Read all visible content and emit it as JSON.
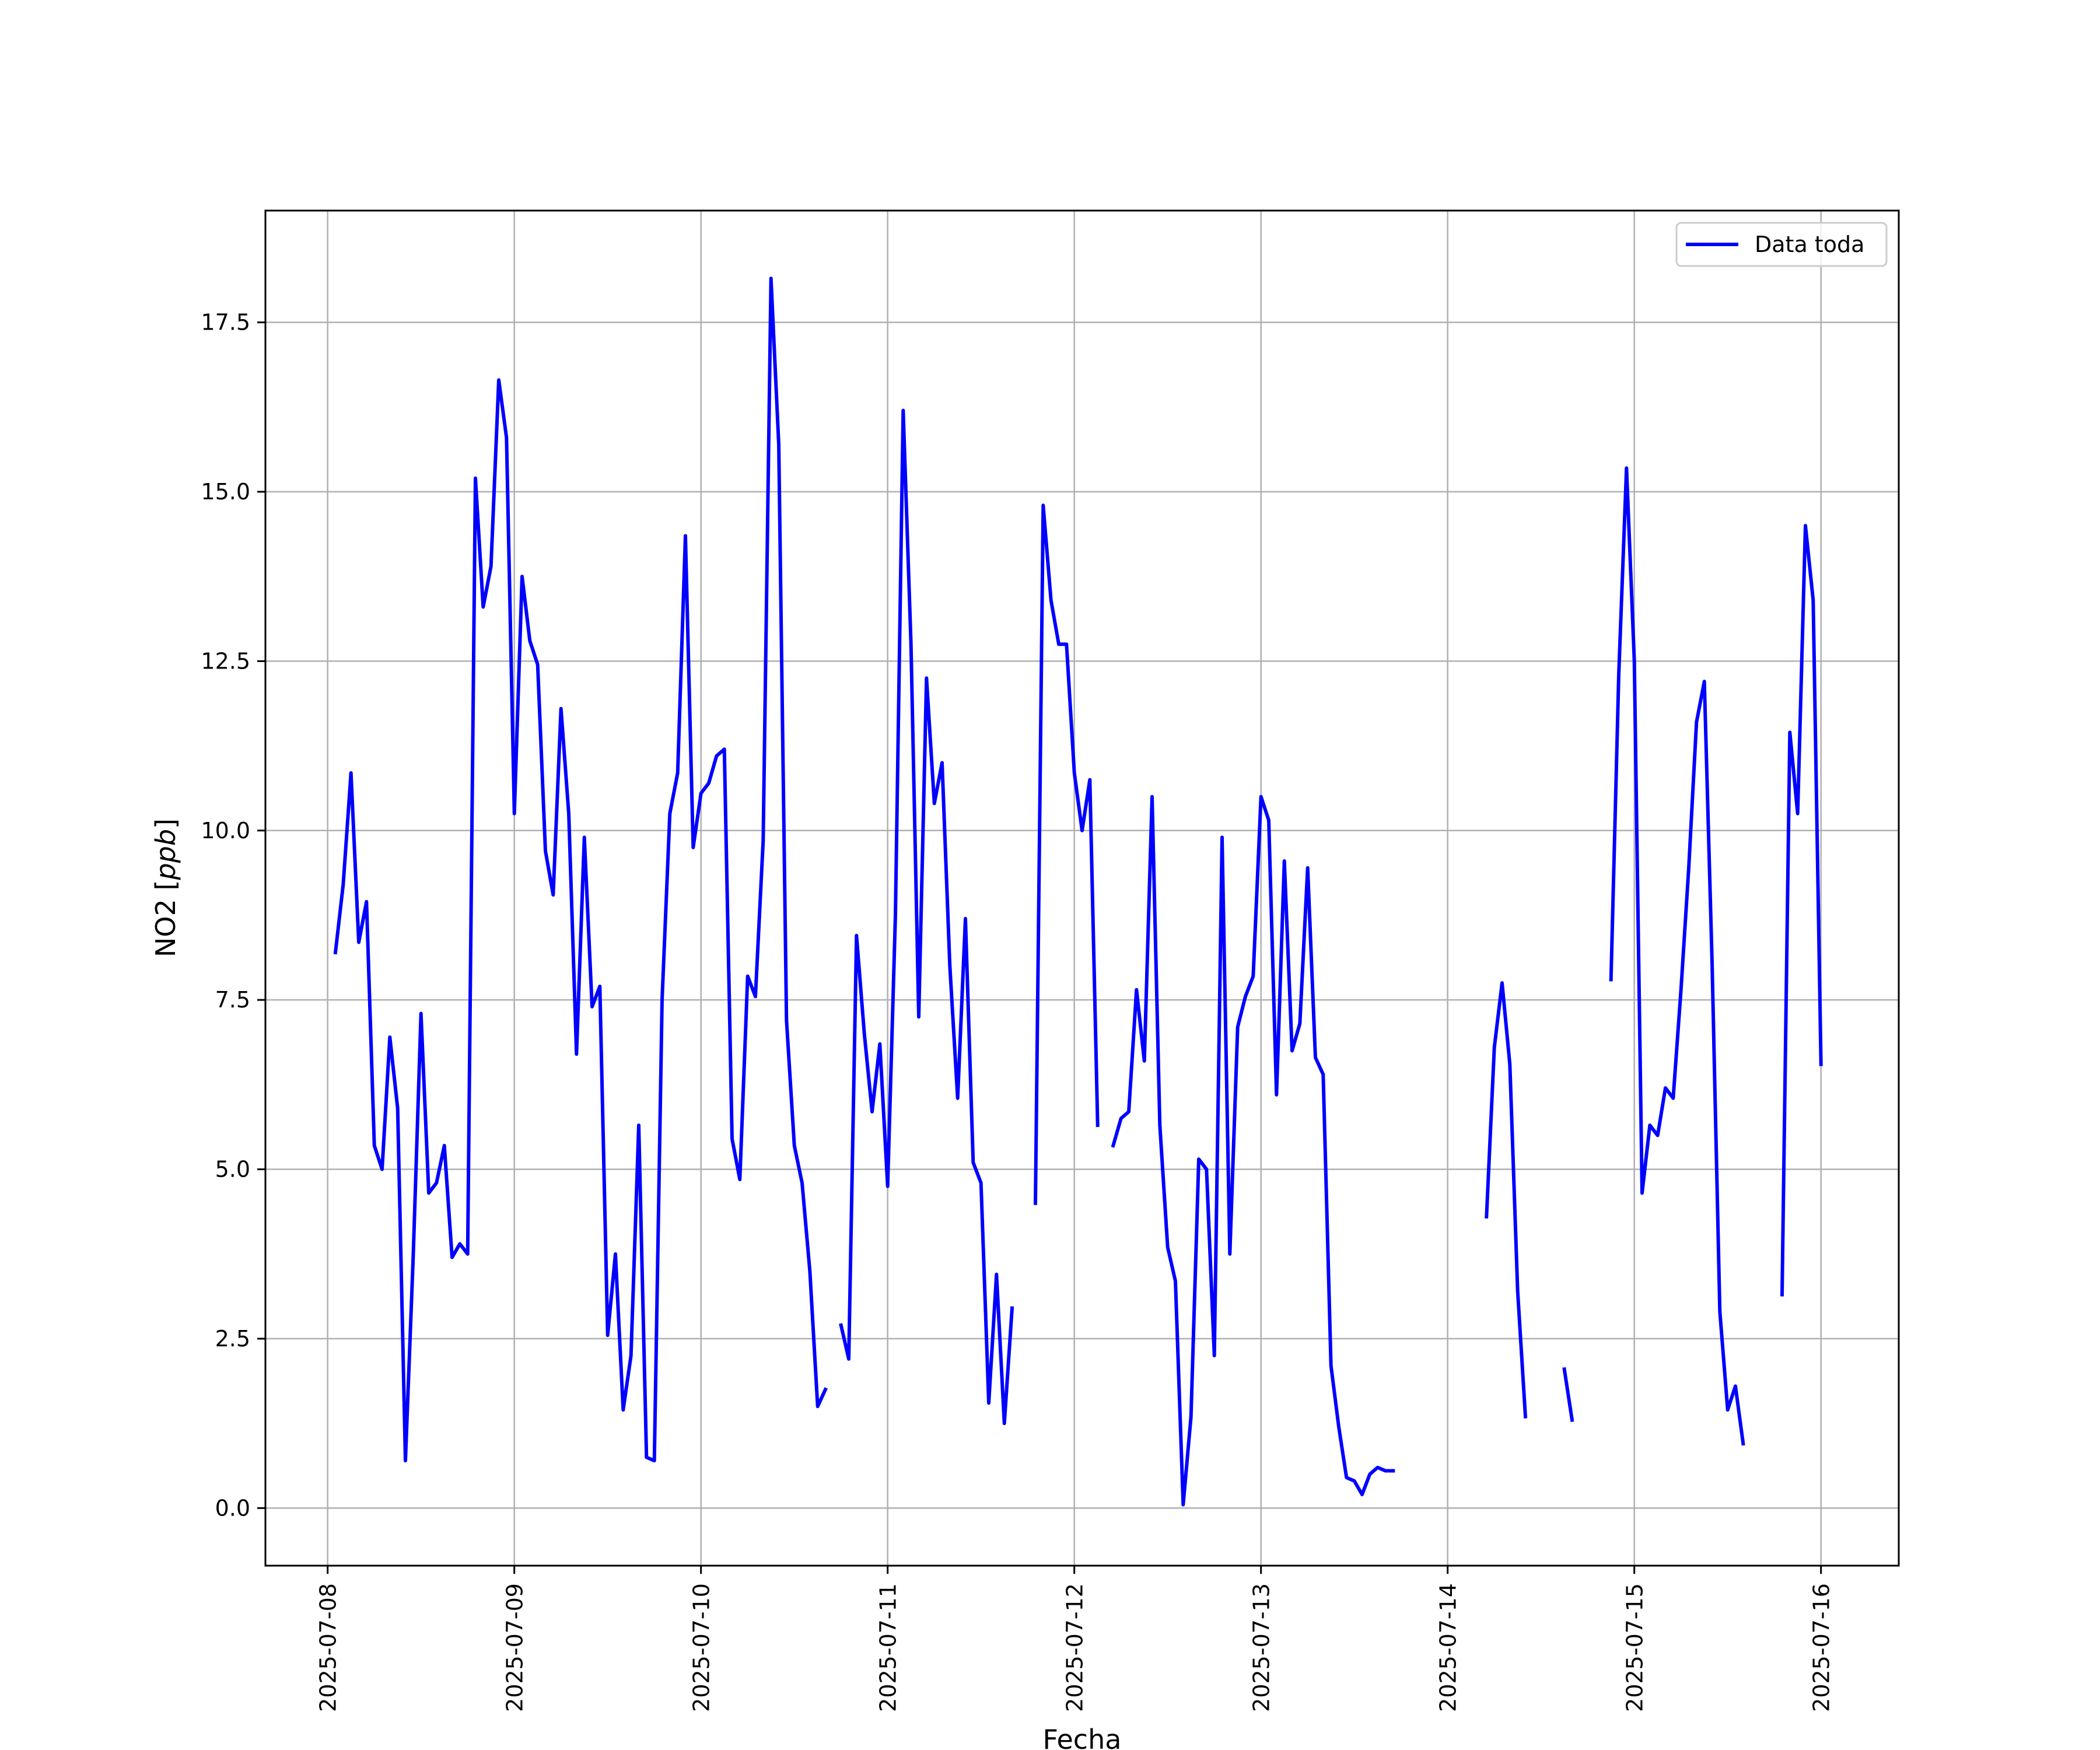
{
  "chart_data": {
    "type": "line",
    "title": "",
    "xlabel": "Fecha",
    "ylabel": "NO2",
    "ylabel_unit": "ppb",
    "xlim": [
      "2025-07-07T16:00",
      "2025-07-16T10:00"
    ],
    "ylim": [
      -0.85,
      19.15
    ],
    "yticks": [
      0.0,
      2.5,
      5.0,
      7.5,
      10.0,
      12.5,
      15.0,
      17.5
    ],
    "ytick_labels": [
      "0.0",
      "2.5",
      "5.0",
      "7.5",
      "10.0",
      "12.5",
      "15.0",
      "17.5"
    ],
    "xticks": [
      "2025-07-08",
      "2025-07-09",
      "2025-07-10",
      "2025-07-11",
      "2025-07-12",
      "2025-07-13",
      "2025-07-14",
      "2025-07-15",
      "2025-07-16"
    ],
    "grid": true,
    "legend": {
      "placement": "top-right",
      "entries": [
        "Data toda"
      ]
    },
    "series": [
      {
        "name": "Data toda",
        "color": "#0000ff",
        "points": [
          [
            "2025-07-08T01:00",
            8.2
          ],
          [
            "2025-07-08T02:00",
            9.2
          ],
          [
            "2025-07-08T03:00",
            10.85
          ],
          [
            "2025-07-08T04:00",
            8.35
          ],
          [
            "2025-07-08T05:00",
            8.95
          ],
          [
            "2025-07-08T06:00",
            5.35
          ],
          [
            "2025-07-08T07:00",
            5.0
          ],
          [
            "2025-07-08T08:00",
            6.95
          ],
          [
            "2025-07-08T09:00",
            5.9
          ],
          [
            "2025-07-08T10:00",
            0.7
          ],
          [
            "2025-07-08T11:00",
            3.7
          ],
          [
            "2025-07-08T12:00",
            7.3
          ],
          [
            "2025-07-08T13:00",
            4.65
          ],
          [
            "2025-07-08T14:00",
            4.8
          ],
          [
            "2025-07-08T15:00",
            5.35
          ],
          [
            "2025-07-08T16:00",
            3.7
          ],
          [
            "2025-07-08T17:00",
            3.9
          ],
          [
            "2025-07-08T18:00",
            3.75
          ],
          [
            "2025-07-08T19:00",
            15.2
          ],
          [
            "2025-07-08T20:00",
            13.3
          ],
          [
            "2025-07-08T21:00",
            13.9
          ],
          [
            "2025-07-08T22:00",
            16.65
          ],
          [
            "2025-07-08T23:00",
            15.8
          ],
          [
            "2025-07-09T00:00",
            10.25
          ],
          [
            "2025-07-09T01:00",
            13.75
          ],
          [
            "2025-07-09T02:00",
            12.8
          ],
          [
            "2025-07-09T03:00",
            12.45
          ],
          [
            "2025-07-09T04:00",
            9.7
          ],
          [
            "2025-07-09T05:00",
            9.05
          ],
          [
            "2025-07-09T06:00",
            11.8
          ],
          [
            "2025-07-09T07:00",
            10.25
          ],
          [
            "2025-07-09T08:00",
            6.7
          ],
          [
            "2025-07-09T09:00",
            9.9
          ],
          [
            "2025-07-09T10:00",
            7.4
          ],
          [
            "2025-07-09T11:00",
            7.7
          ],
          [
            "2025-07-09T12:00",
            2.55
          ],
          [
            "2025-07-09T13:00",
            3.75
          ],
          [
            "2025-07-09T14:00",
            1.45
          ],
          [
            "2025-07-09T15:00",
            2.25
          ],
          [
            "2025-07-09T16:00",
            5.65
          ],
          [
            "2025-07-09T17:00",
            0.75
          ],
          [
            "2025-07-09T18:00",
            0.7
          ],
          [
            "2025-07-09T19:00",
            7.5
          ],
          [
            "2025-07-09T20:00",
            10.25
          ],
          [
            "2025-07-09T21:00",
            10.85
          ],
          [
            "2025-07-09T22:00",
            14.35
          ],
          [
            "2025-07-09T23:00",
            9.75
          ],
          [
            "2025-07-10T00:00",
            10.55
          ],
          [
            "2025-07-10T01:00",
            10.7
          ],
          [
            "2025-07-10T02:00",
            11.1
          ],
          [
            "2025-07-10T03:00",
            11.2
          ],
          [
            "2025-07-10T04:00",
            5.45
          ],
          [
            "2025-07-10T05:00",
            4.85
          ],
          [
            "2025-07-10T06:00",
            7.85
          ],
          [
            "2025-07-10T07:00",
            7.55
          ],
          [
            "2025-07-10T08:00",
            9.85
          ],
          [
            "2025-07-10T09:00",
            18.15
          ],
          [
            "2025-07-10T10:00",
            15.7
          ],
          [
            "2025-07-10T11:00",
            7.2
          ],
          [
            "2025-07-10T12:00",
            5.35
          ],
          [
            "2025-07-10T13:00",
            4.8
          ],
          [
            "2025-07-10T14:00",
            3.5
          ],
          [
            "2025-07-10T15:00",
            1.5
          ],
          [
            "2025-07-10T16:00",
            1.75
          ],
          null,
          [
            "2025-07-10T18:00",
            2.7
          ],
          [
            "2025-07-10T19:00",
            2.2
          ],
          [
            "2025-07-10T20:00",
            8.45
          ],
          [
            "2025-07-10T21:00",
            7.0
          ],
          [
            "2025-07-10T22:00",
            5.85
          ],
          [
            "2025-07-10T23:00",
            6.85
          ],
          [
            "2025-07-11T00:00",
            4.75
          ],
          [
            "2025-07-11T01:00",
            8.75
          ],
          [
            "2025-07-11T02:00",
            16.2
          ],
          [
            "2025-07-11T03:00",
            12.75
          ],
          [
            "2025-07-11T04:00",
            7.25
          ],
          [
            "2025-07-11T05:00",
            12.25
          ],
          [
            "2025-07-11T06:00",
            10.4
          ],
          [
            "2025-07-11T07:00",
            11.0
          ],
          [
            "2025-07-11T08:00",
            8.0
          ],
          [
            "2025-07-11T09:00",
            6.05
          ],
          [
            "2025-07-11T10:00",
            8.7
          ],
          [
            "2025-07-11T11:00",
            5.1
          ],
          [
            "2025-07-11T12:00",
            4.8
          ],
          [
            "2025-07-11T13:00",
            1.55
          ],
          [
            "2025-07-11T14:00",
            3.45
          ],
          [
            "2025-07-11T15:00",
            1.25
          ],
          [
            "2025-07-11T16:00",
            2.95
          ],
          null,
          [
            "2025-07-11T19:00",
            4.5
          ],
          [
            "2025-07-11T20:00",
            14.8
          ],
          [
            "2025-07-11T21:00",
            13.4
          ],
          [
            "2025-07-11T22:00",
            12.75
          ],
          [
            "2025-07-11T23:00",
            12.75
          ],
          [
            "2025-07-12T00:00",
            10.85
          ],
          [
            "2025-07-12T01:00",
            10.0
          ],
          [
            "2025-07-12T02:00",
            10.75
          ],
          [
            "2025-07-12T03:00",
            5.65
          ],
          null,
          [
            "2025-07-12T05:00",
            5.35
          ],
          [
            "2025-07-12T06:00",
            5.75
          ],
          [
            "2025-07-12T07:00",
            5.85
          ],
          [
            "2025-07-12T08:00",
            7.65
          ],
          [
            "2025-07-12T09:00",
            6.6
          ],
          [
            "2025-07-12T10:00",
            10.5
          ],
          [
            "2025-07-12T11:00",
            5.65
          ],
          [
            "2025-07-12T12:00",
            3.85
          ],
          [
            "2025-07-12T13:00",
            3.35
          ],
          [
            "2025-07-12T14:00",
            0.05
          ],
          [
            "2025-07-12T15:00",
            1.35
          ],
          [
            "2025-07-12T16:00",
            5.15
          ],
          [
            "2025-07-12T17:00",
            5.0
          ],
          [
            "2025-07-12T18:00",
            2.25
          ],
          [
            "2025-07-12T19:00",
            9.9
          ],
          [
            "2025-07-12T20:00",
            3.75
          ],
          [
            "2025-07-12T21:00",
            7.1
          ],
          [
            "2025-07-12T22:00",
            7.55
          ],
          [
            "2025-07-12T23:00",
            7.85
          ],
          [
            "2025-07-13T00:00",
            10.5
          ],
          [
            "2025-07-13T01:00",
            10.15
          ],
          [
            "2025-07-13T02:00",
            6.1
          ],
          [
            "2025-07-13T03:00",
            9.55
          ],
          [
            "2025-07-13T04:00",
            6.75
          ],
          [
            "2025-07-13T05:00",
            7.15
          ],
          [
            "2025-07-13T06:00",
            9.45
          ],
          [
            "2025-07-13T07:00",
            6.65
          ],
          [
            "2025-07-13T08:00",
            6.4
          ],
          [
            "2025-07-13T09:00",
            2.1
          ],
          [
            "2025-07-13T10:00",
            1.2
          ],
          [
            "2025-07-13T11:00",
            0.45
          ],
          [
            "2025-07-13T12:00",
            0.4
          ],
          [
            "2025-07-13T13:00",
            0.2
          ],
          [
            "2025-07-13T14:00",
            0.5
          ],
          [
            "2025-07-13T15:00",
            0.6
          ],
          [
            "2025-07-13T16:00",
            0.55
          ],
          [
            "2025-07-13T17:00",
            0.55
          ],
          null,
          [
            "2025-07-14T05:00",
            4.3
          ],
          [
            "2025-07-14T06:00",
            6.8
          ],
          [
            "2025-07-14T07:00",
            7.75
          ],
          [
            "2025-07-14T08:00",
            6.55
          ],
          [
            "2025-07-14T09:00",
            3.2
          ],
          [
            "2025-07-14T10:00",
            1.35
          ],
          null,
          [
            "2025-07-14T15:00",
            2.05
          ],
          [
            "2025-07-14T16:00",
            1.3
          ],
          null,
          [
            "2025-07-14T21:00",
            7.8
          ],
          [
            "2025-07-14T22:00",
            12.3
          ],
          [
            "2025-07-14T23:00",
            15.35
          ],
          [
            "2025-07-15T00:00",
            12.5
          ],
          [
            "2025-07-15T01:00",
            4.65
          ],
          [
            "2025-07-15T02:00",
            5.65
          ],
          [
            "2025-07-15T03:00",
            5.5
          ],
          [
            "2025-07-15T04:00",
            6.2
          ],
          [
            "2025-07-15T05:00",
            6.05
          ],
          [
            "2025-07-15T06:00",
            7.65
          ],
          [
            "2025-07-15T07:00",
            9.45
          ],
          [
            "2025-07-15T08:00",
            11.6
          ],
          [
            "2025-07-15T09:00",
            12.2
          ],
          [
            "2025-07-15T10:00",
            8.05
          ],
          [
            "2025-07-15T11:00",
            2.9
          ],
          [
            "2025-07-15T12:00",
            1.45
          ],
          [
            "2025-07-15T13:00",
            1.8
          ],
          [
            "2025-07-15T14:00",
            0.95
          ],
          null,
          [
            "2025-07-15T19:00",
            3.15
          ],
          [
            "2025-07-15T20:00",
            11.45
          ],
          [
            "2025-07-15T21:00",
            10.25
          ],
          [
            "2025-07-15T22:00",
            14.5
          ],
          [
            "2025-07-15T23:00",
            13.4
          ],
          [
            "2025-07-16T00:00",
            6.55
          ]
        ]
      }
    ]
  }
}
